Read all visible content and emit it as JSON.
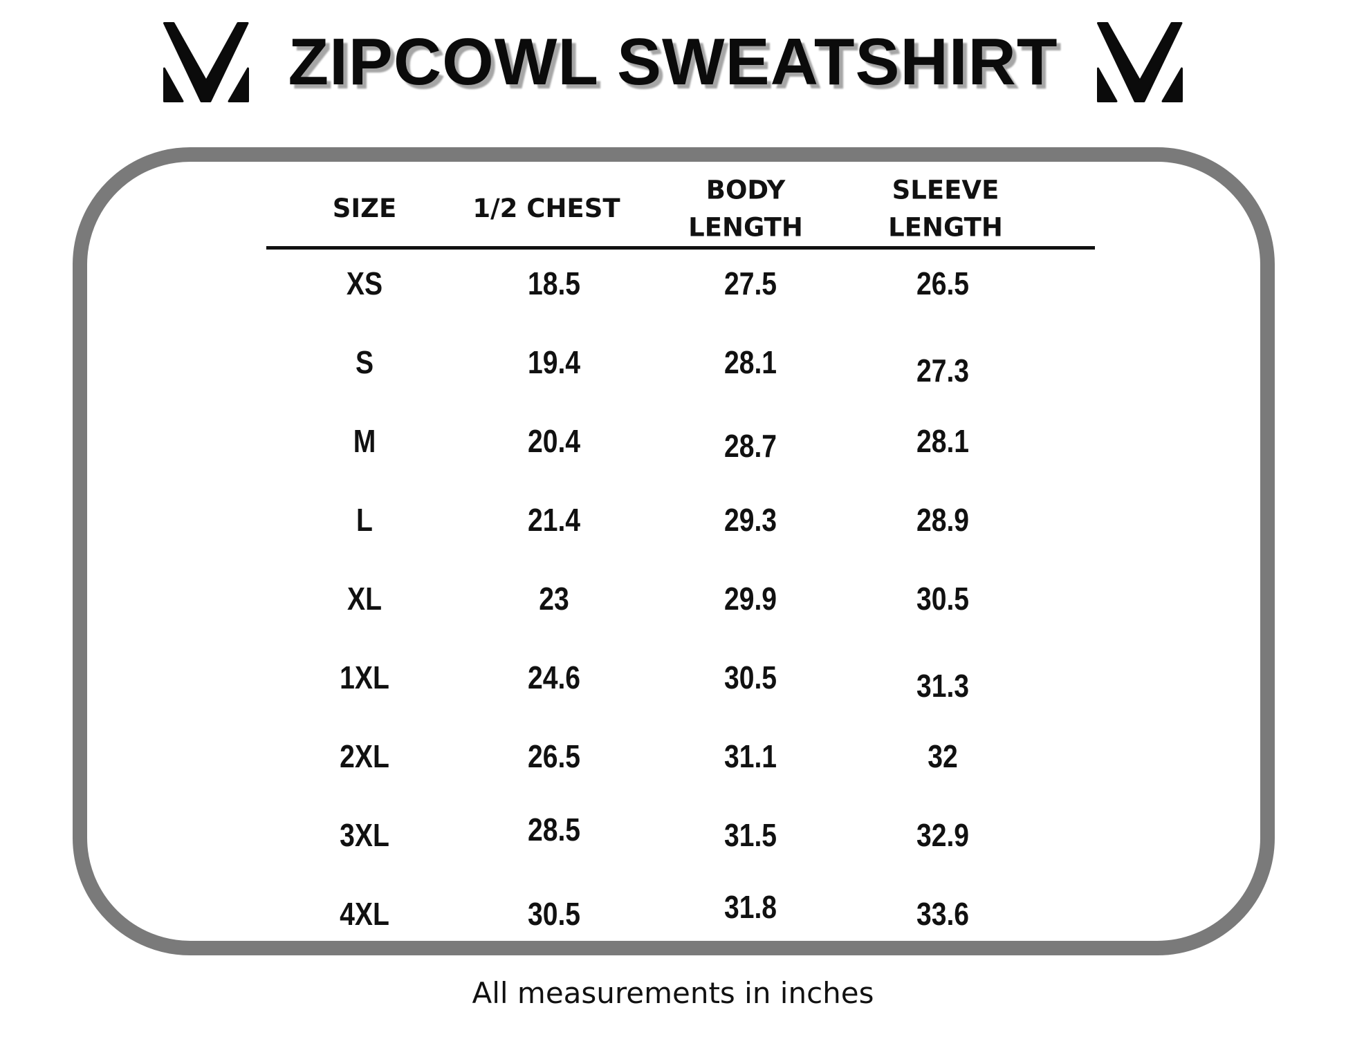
{
  "header": {
    "title": "ZIPCOWL SWEATSHIRT",
    "logo_icon": "mv-monogram"
  },
  "colors": {
    "ink": "#111111",
    "title_text": "#0b0b0b",
    "title_shadow": "#a6a6a6",
    "panel_border": "#7a7a7a",
    "background": "#ffffff"
  },
  "size_chart": {
    "type": "table",
    "title": "ZIPCOWL SWEATSHIRT",
    "columns": [
      "SIZE",
      "1/2 CHEST",
      "BODY LENGTH",
      "SLEEVE LENGTH"
    ],
    "column_display": [
      "SIZE",
      "1/2 CHEST",
      "BODY\nLENGTH",
      "SLEEVE\nLENGTH"
    ],
    "rows": [
      [
        "XS",
        "18.5",
        "27.5",
        "26.5"
      ],
      [
        "S",
        "19.4",
        "28.1",
        "27.3"
      ],
      [
        "M",
        "20.4",
        "28.7",
        "28.1"
      ],
      [
        "L",
        "21.4",
        "29.3",
        "28.9"
      ],
      [
        "XL",
        "23",
        "29.9",
        "30.5"
      ],
      [
        "1XL",
        "24.6",
        "30.5",
        "31.3"
      ],
      [
        "2XL",
        "26.5",
        "31.1",
        "32"
      ],
      [
        "3XL",
        "28.5",
        "31.5",
        "32.9"
      ],
      [
        "4XL",
        "30.5",
        "31.8",
        "33.6"
      ]
    ],
    "footnote": "All measurements in inches"
  },
  "footer": {
    "note": "All measurements in inches"
  }
}
